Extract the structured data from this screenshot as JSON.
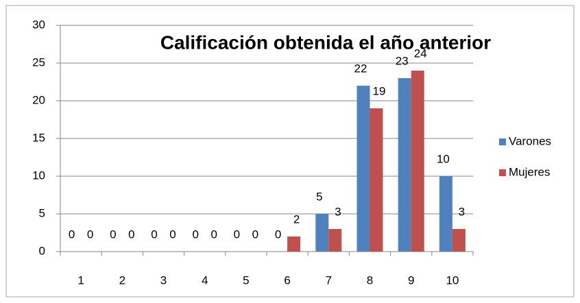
{
  "chart_data": {
    "type": "bar",
    "title": "Calificación obtenida el año anterior",
    "categories": [
      "1",
      "2",
      "3",
      "4",
      "5",
      "6",
      "7",
      "8",
      "9",
      "10"
    ],
    "series": [
      {
        "name": "Varones",
        "color": "#4f81bd",
        "values": [
          0,
          0,
          0,
          0,
          0,
          0,
          5,
          22,
          23,
          10
        ]
      },
      {
        "name": "Mujeres",
        "color": "#c0504d",
        "values": [
          0,
          0,
          0,
          0,
          0,
          2,
          3,
          19,
          24,
          3
        ]
      }
    ],
    "ylim": [
      0,
      30
    ],
    "yticks": [
      0,
      5,
      10,
      15,
      20,
      25,
      30
    ],
    "grid": true,
    "legend": "right",
    "data_labels": true
  }
}
